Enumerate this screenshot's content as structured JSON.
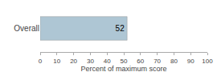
{
  "chart_data": {
    "type": "bar",
    "orientation": "horizontal",
    "categories": [
      "Overall"
    ],
    "values": [
      52
    ],
    "color": "#aec6d4",
    "xlabel": "Percent of maximum score",
    "xlim": [
      0,
      100
    ],
    "xticks": [
      0,
      10,
      20,
      30,
      40,
      50,
      60,
      70,
      80,
      90,
      100
    ],
    "data_labels": true,
    "grid": false
  }
}
